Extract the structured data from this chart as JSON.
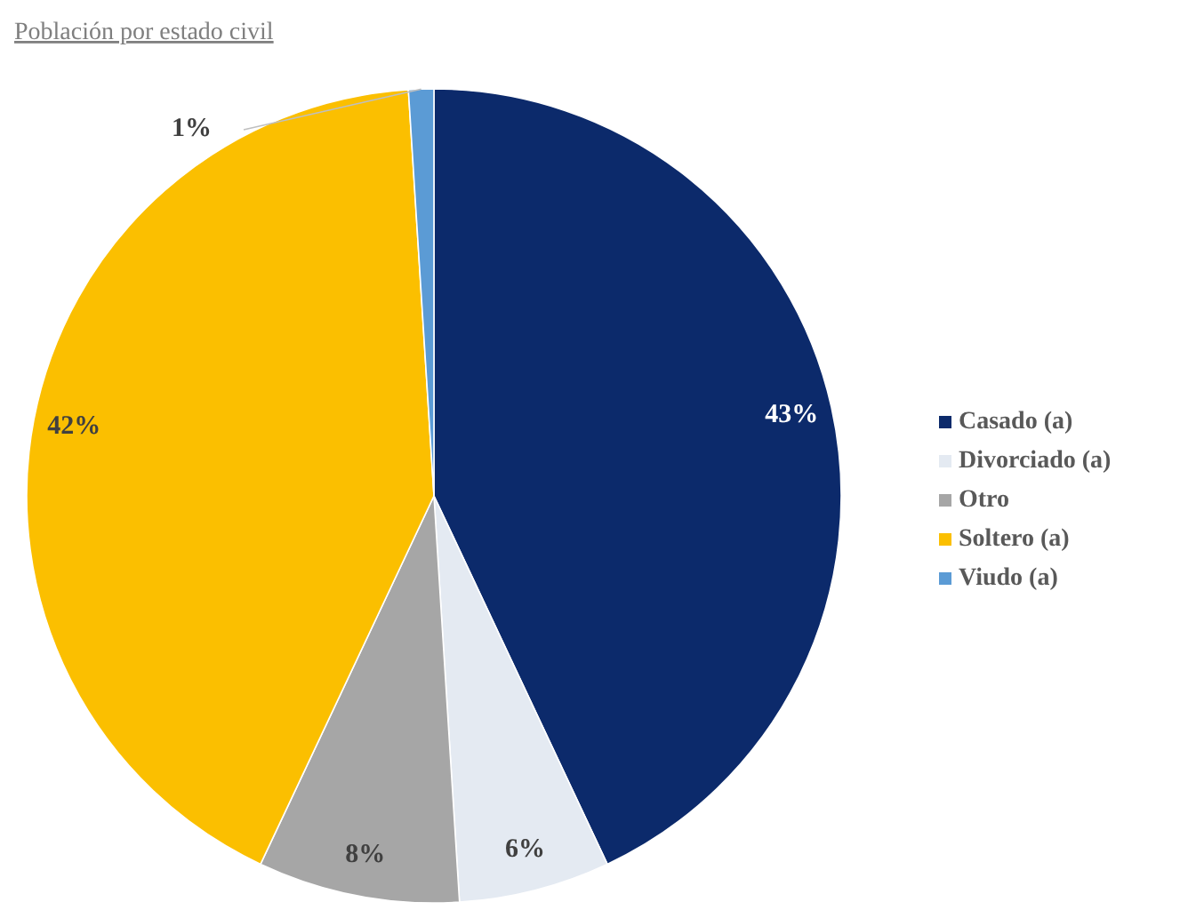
{
  "chart_data": {
    "type": "pie",
    "title": "Población por estado civil",
    "categories": [
      "Casado (a)",
      "Divorciado (a)",
      "Otro",
      "Soltero (a)",
      "Viudo (a)"
    ],
    "values": [
      43,
      6,
      8,
      42,
      1
    ],
    "colors": [
      "#0c2a6b",
      "#e4eaf2",
      "#a6a6a6",
      "#fbbf00",
      "#5b9bd5"
    ],
    "value_labels": [
      "43%",
      "6%",
      "8%",
      "42%",
      "1%"
    ],
    "legend": "right"
  }
}
